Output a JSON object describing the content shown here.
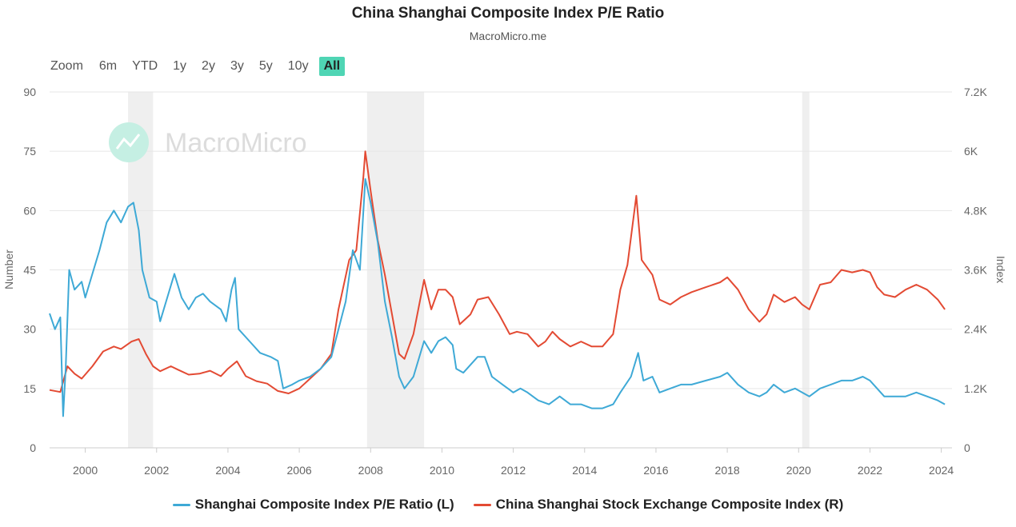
{
  "chart_data": {
    "type": "line",
    "title": "China Shanghai Composite Index P/E Ratio",
    "subtitle": "MacroMicro.me",
    "watermark": "MacroMicro",
    "zoom": {
      "label": "Zoom",
      "options": [
        "6m",
        "YTD",
        "1y",
        "2y",
        "3y",
        "5y",
        "10y",
        "All"
      ],
      "selected": "All",
      "active_color": "#4fd5b4"
    },
    "x_axis": {
      "ticks": [
        "2000",
        "2002",
        "2004",
        "2006",
        "2008",
        "2010",
        "2012",
        "2014",
        "2016",
        "2018",
        "2020",
        "2022",
        "2024"
      ],
      "range": [
        1999.0,
        2024.3
      ]
    },
    "y_left": {
      "label": "Number",
      "ticks": [
        "0",
        "15",
        "30",
        "45",
        "60",
        "75",
        "90"
      ],
      "range": [
        0,
        90
      ]
    },
    "y_right": {
      "label": "Index",
      "ticks": [
        "0",
        "1.2K",
        "2.4K",
        "3.6K",
        "4.8K",
        "6K",
        "7.2K"
      ],
      "range": [
        0,
        7200
      ]
    },
    "recession_bands": [
      [
        2001.2,
        2001.9
      ],
      [
        2007.9,
        2009.5
      ],
      [
        2020.1,
        2020.3
      ]
    ],
    "grid": true,
    "legend_position": "bottom",
    "series": [
      {
        "name": "Shanghai Composite Index P/E Ratio (L)",
        "axis": "left",
        "color": "#3ea9d6",
        "points": [
          [
            1999.0,
            34
          ],
          [
            1999.15,
            30
          ],
          [
            1999.3,
            33
          ],
          [
            1999.38,
            8
          ],
          [
            1999.45,
            20
          ],
          [
            1999.55,
            45
          ],
          [
            1999.7,
            40
          ],
          [
            1999.9,
            42
          ],
          [
            2000.0,
            38
          ],
          [
            2000.2,
            44
          ],
          [
            2000.4,
            50
          ],
          [
            2000.6,
            57
          ],
          [
            2000.8,
            60
          ],
          [
            2001.0,
            57
          ],
          [
            2001.2,
            61
          ],
          [
            2001.35,
            62
          ],
          [
            2001.5,
            55
          ],
          [
            2001.6,
            45
          ],
          [
            2001.8,
            38
          ],
          [
            2002.0,
            37
          ],
          [
            2002.1,
            32
          ],
          [
            2002.3,
            38
          ],
          [
            2002.5,
            44
          ],
          [
            2002.7,
            38
          ],
          [
            2002.9,
            35
          ],
          [
            2003.1,
            38
          ],
          [
            2003.3,
            39
          ],
          [
            2003.5,
            37
          ],
          [
            2003.8,
            35
          ],
          [
            2003.95,
            32
          ],
          [
            2004.1,
            40
          ],
          [
            2004.2,
            43
          ],
          [
            2004.3,
            30
          ],
          [
            2004.6,
            27
          ],
          [
            2004.9,
            24
          ],
          [
            2005.2,
            23
          ],
          [
            2005.4,
            22
          ],
          [
            2005.55,
            15
          ],
          [
            2005.8,
            16
          ],
          [
            2006.0,
            17
          ],
          [
            2006.3,
            18
          ],
          [
            2006.6,
            20
          ],
          [
            2006.9,
            23
          ],
          [
            2007.1,
            30
          ],
          [
            2007.3,
            37
          ],
          [
            2007.5,
            50
          ],
          [
            2007.7,
            45
          ],
          [
            2007.85,
            68
          ],
          [
            2008.0,
            62
          ],
          [
            2008.2,
            52
          ],
          [
            2008.4,
            37
          ],
          [
            2008.6,
            28
          ],
          [
            2008.8,
            18
          ],
          [
            2008.95,
            15
          ],
          [
            2009.2,
            18
          ],
          [
            2009.5,
            27
          ],
          [
            2009.7,
            24
          ],
          [
            2009.9,
            27
          ],
          [
            2010.1,
            28
          ],
          [
            2010.3,
            26
          ],
          [
            2010.4,
            20
          ],
          [
            2010.6,
            19
          ],
          [
            2010.8,
            21
          ],
          [
            2011.0,
            23
          ],
          [
            2011.2,
            23
          ],
          [
            2011.4,
            18
          ],
          [
            2011.7,
            16
          ],
          [
            2012.0,
            14
          ],
          [
            2012.2,
            15
          ],
          [
            2012.4,
            14
          ],
          [
            2012.7,
            12
          ],
          [
            2013.0,
            11
          ],
          [
            2013.3,
            13
          ],
          [
            2013.6,
            11
          ],
          [
            2013.9,
            11
          ],
          [
            2014.2,
            10
          ],
          [
            2014.5,
            10
          ],
          [
            2014.8,
            11
          ],
          [
            2015.0,
            14
          ],
          [
            2015.3,
            18
          ],
          [
            2015.5,
            24
          ],
          [
            2015.65,
            17
          ],
          [
            2015.9,
            18
          ],
          [
            2016.1,
            14
          ],
          [
            2016.4,
            15
          ],
          [
            2016.7,
            16
          ],
          [
            2017.0,
            16
          ],
          [
            2017.4,
            17
          ],
          [
            2017.8,
            18
          ],
          [
            2018.0,
            19
          ],
          [
            2018.3,
            16
          ],
          [
            2018.6,
            14
          ],
          [
            2018.9,
            13
          ],
          [
            2019.1,
            14
          ],
          [
            2019.3,
            16
          ],
          [
            2019.6,
            14
          ],
          [
            2019.9,
            15
          ],
          [
            2020.1,
            14
          ],
          [
            2020.3,
            13
          ],
          [
            2020.6,
            15
          ],
          [
            2020.9,
            16
          ],
          [
            2021.2,
            17
          ],
          [
            2021.5,
            17
          ],
          [
            2021.8,
            18
          ],
          [
            2022.0,
            17
          ],
          [
            2022.2,
            15
          ],
          [
            2022.4,
            13
          ],
          [
            2022.7,
            13
          ],
          [
            2023.0,
            13
          ],
          [
            2023.3,
            14
          ],
          [
            2023.6,
            13
          ],
          [
            2023.9,
            12
          ],
          [
            2024.1,
            11
          ]
        ]
      },
      {
        "name": "China Shanghai Stock Exchange Composite Index (R)",
        "axis": "right",
        "color": "#e34a33",
        "points": [
          [
            1999.0,
            1170
          ],
          [
            1999.3,
            1130
          ],
          [
            1999.5,
            1650
          ],
          [
            1999.7,
            1500
          ],
          [
            1999.9,
            1400
          ],
          [
            2000.2,
            1650
          ],
          [
            2000.5,
            1950
          ],
          [
            2000.8,
            2050
          ],
          [
            2001.0,
            2000
          ],
          [
            2001.3,
            2150
          ],
          [
            2001.5,
            2200
          ],
          [
            2001.7,
            1900
          ],
          [
            2001.9,
            1650
          ],
          [
            2002.1,
            1550
          ],
          [
            2002.4,
            1650
          ],
          [
            2002.6,
            1580
          ],
          [
            2002.9,
            1480
          ],
          [
            2003.2,
            1500
          ],
          [
            2003.5,
            1560
          ],
          [
            2003.8,
            1450
          ],
          [
            2004.0,
            1600
          ],
          [
            2004.25,
            1750
          ],
          [
            2004.5,
            1450
          ],
          [
            2004.8,
            1350
          ],
          [
            2005.1,
            1300
          ],
          [
            2005.4,
            1150
          ],
          [
            2005.7,
            1100
          ],
          [
            2006.0,
            1200
          ],
          [
            2006.3,
            1400
          ],
          [
            2006.6,
            1600
          ],
          [
            2006.9,
            1900
          ],
          [
            2007.1,
            2800
          ],
          [
            2007.4,
            3800
          ],
          [
            2007.6,
            4000
          ],
          [
            2007.8,
            5500
          ],
          [
            2007.85,
            6000
          ],
          [
            2008.0,
            5200
          ],
          [
            2008.2,
            4200
          ],
          [
            2008.4,
            3500
          ],
          [
            2008.6,
            2700
          ],
          [
            2008.8,
            1900
          ],
          [
            2008.95,
            1800
          ],
          [
            2009.2,
            2300
          ],
          [
            2009.5,
            3400
          ],
          [
            2009.7,
            2800
          ],
          [
            2009.9,
            3200
          ],
          [
            2010.1,
            3200
          ],
          [
            2010.3,
            3050
          ],
          [
            2010.5,
            2500
          ],
          [
            2010.8,
            2700
          ],
          [
            2011.0,
            3000
          ],
          [
            2011.3,
            3050
          ],
          [
            2011.6,
            2700
          ],
          [
            2011.9,
            2300
          ],
          [
            2012.1,
            2350
          ],
          [
            2012.4,
            2300
          ],
          [
            2012.7,
            2050
          ],
          [
            2012.9,
            2150
          ],
          [
            2013.1,
            2350
          ],
          [
            2013.3,
            2200
          ],
          [
            2013.6,
            2050
          ],
          [
            2013.9,
            2150
          ],
          [
            2014.2,
            2050
          ],
          [
            2014.5,
            2050
          ],
          [
            2014.8,
            2300
          ],
          [
            2015.0,
            3200
          ],
          [
            2015.2,
            3700
          ],
          [
            2015.45,
            5100
          ],
          [
            2015.6,
            3800
          ],
          [
            2015.9,
            3500
          ],
          [
            2016.1,
            3000
          ],
          [
            2016.4,
            2900
          ],
          [
            2016.7,
            3050
          ],
          [
            2017.0,
            3150
          ],
          [
            2017.4,
            3250
          ],
          [
            2017.8,
            3350
          ],
          [
            2018.0,
            3450
          ],
          [
            2018.3,
            3200
          ],
          [
            2018.6,
            2800
          ],
          [
            2018.9,
            2550
          ],
          [
            2019.1,
            2700
          ],
          [
            2019.3,
            3100
          ],
          [
            2019.6,
            2950
          ],
          [
            2019.9,
            3050
          ],
          [
            2020.1,
            2900
          ],
          [
            2020.3,
            2800
          ],
          [
            2020.6,
            3300
          ],
          [
            2020.9,
            3350
          ],
          [
            2021.2,
            3600
          ],
          [
            2021.5,
            3550
          ],
          [
            2021.8,
            3600
          ],
          [
            2022.0,
            3550
          ],
          [
            2022.2,
            3250
          ],
          [
            2022.4,
            3100
          ],
          [
            2022.7,
            3050
          ],
          [
            2023.0,
            3200
          ],
          [
            2023.3,
            3300
          ],
          [
            2023.6,
            3200
          ],
          [
            2023.9,
            3000
          ],
          [
            2024.1,
            2800
          ]
        ]
      }
    ]
  }
}
